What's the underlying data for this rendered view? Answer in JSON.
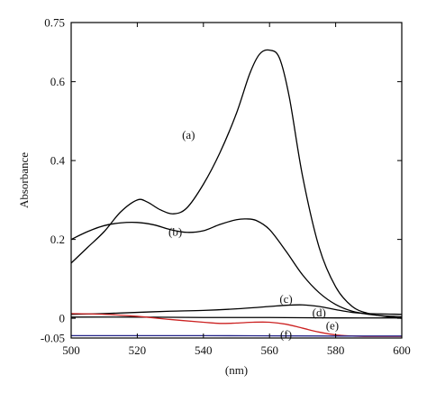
{
  "chart_data": {
    "type": "line",
    "title": "",
    "xlabel": "(nm)",
    "ylabel": "Absorbance",
    "xlim": [
      500,
      600
    ],
    "ylim": [
      -0.05,
      0.75
    ],
    "x_ticks": [
      500,
      520,
      540,
      560,
      580,
      600
    ],
    "y_ticks": [
      -0.05,
      0,
      0.2,
      0.4,
      0.6,
      0.75
    ],
    "y_tick_labels": [
      "-0.05",
      "0",
      "0.2",
      "0.4",
      "0.6",
      "0.75"
    ],
    "grid": false,
    "series": [
      {
        "name": "(a)",
        "color": "#000000",
        "x": [
          500,
          505,
          510,
          515,
          520,
          523,
          527,
          531,
          535,
          540,
          545,
          550,
          554,
          557,
          560,
          563,
          566,
          570,
          575,
          580,
          585,
          590,
          595,
          600
        ],
        "y": [
          0.14,
          0.18,
          0.22,
          0.27,
          0.3,
          0.295,
          0.275,
          0.265,
          0.28,
          0.34,
          0.42,
          0.52,
          0.62,
          0.67,
          0.68,
          0.66,
          0.56,
          0.36,
          0.18,
          0.08,
          0.03,
          0.012,
          0.005,
          0.0
        ]
      },
      {
        "name": "(b)",
        "color": "#000000",
        "x": [
          500,
          505,
          510,
          515,
          520,
          525,
          530,
          535,
          540,
          545,
          550,
          553,
          556,
          560,
          565,
          570,
          575,
          580,
          585,
          590,
          595,
          600
        ],
        "y": [
          0.2,
          0.22,
          0.235,
          0.242,
          0.243,
          0.237,
          0.225,
          0.218,
          0.222,
          0.238,
          0.25,
          0.252,
          0.248,
          0.225,
          0.17,
          0.11,
          0.065,
          0.035,
          0.018,
          0.01,
          0.006,
          0.004
        ]
      },
      {
        "name": "(c)",
        "color": "#000000",
        "x": [
          500,
          510,
          520,
          530,
          540,
          550,
          560,
          565,
          570,
          575,
          580,
          585,
          590,
          600
        ],
        "y": [
          0.01,
          0.012,
          0.015,
          0.018,
          0.02,
          0.024,
          0.03,
          0.033,
          0.034,
          0.03,
          0.022,
          0.015,
          0.012,
          0.01
        ]
      },
      {
        "name": "(d)",
        "color": "#000000",
        "x": [
          500,
          520,
          540,
          560,
          580,
          600
        ],
        "y": [
          0.003,
          0.003,
          0.002,
          0.002,
          0.001,
          0.001
        ]
      },
      {
        "name": "(e)",
        "color": "#cc2222",
        "x": [
          500,
          510,
          520,
          530,
          540,
          545,
          550,
          555,
          560,
          565,
          570,
          575,
          580,
          585,
          590,
          600
        ],
        "y": [
          0.012,
          0.01,
          0.005,
          -0.003,
          -0.01,
          -0.013,
          -0.012,
          -0.01,
          -0.01,
          -0.015,
          -0.025,
          -0.035,
          -0.042,
          -0.045,
          -0.046,
          -0.046
        ]
      },
      {
        "name": "(f)",
        "color": "#222288",
        "x": [
          500,
          540,
          580,
          600
        ],
        "y": [
          -0.044,
          -0.044,
          -0.045,
          -0.045
        ]
      }
    ],
    "annotations": [
      {
        "text": "(a)",
        "x": 535.5,
        "y": 0.465
      },
      {
        "text": "(b)",
        "x": 531.5,
        "y": 0.22
      },
      {
        "text": "(c)",
        "x": 565,
        "y": 0.05
      },
      {
        "text": "(d)",
        "x": 575,
        "y": 0.015
      },
      {
        "text": "(e)",
        "x": 579,
        "y": -0.018
      },
      {
        "text": "(f)",
        "x": 565,
        "y": -0.041
      }
    ]
  }
}
